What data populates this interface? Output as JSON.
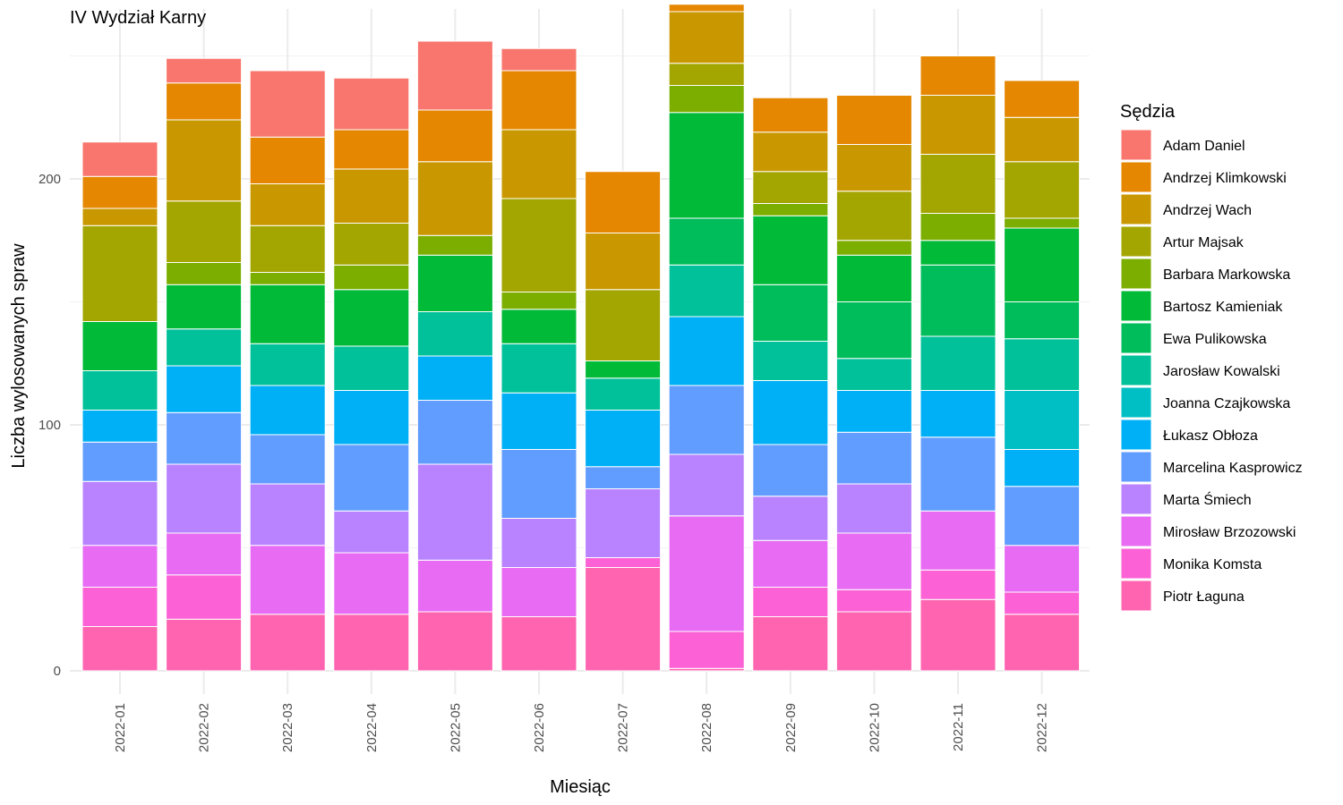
{
  "chart_data": {
    "type": "bar",
    "stacked": true,
    "title": "IV Wydział Karny",
    "xlabel": "Miesiąc",
    "ylabel": "Liczba wylosowanych spraw",
    "ylim": [
      0,
      262
    ],
    "yticks": [
      0,
      100,
      200
    ],
    "grid": true,
    "legend_title": "Sędzia",
    "legend_position": "right",
    "categories": [
      "2022-01",
      "2022-02",
      "2022-03",
      "2022-04",
      "2022-05",
      "2022-06",
      "2022-07",
      "2022-08",
      "2022-09",
      "2022-10",
      "2022-11",
      "2022-12"
    ],
    "series": [
      {
        "name": "Piotr Łaguna",
        "color": "#FF64B0",
        "values": [
          18,
          21,
          23,
          23,
          24,
          22,
          42,
          1,
          22,
          24,
          29,
          23
        ]
      },
      {
        "name": "Monika Komsta",
        "color": "#FC61D5",
        "values": [
          16,
          18,
          0,
          0,
          0,
          0,
          4,
          15,
          12,
          9,
          12,
          9
        ]
      },
      {
        "name": "Mirosław Brzozowski",
        "color": "#E76BF3",
        "values": [
          17,
          17,
          28,
          25,
          21,
          20,
          0,
          47,
          19,
          23,
          24,
          19
        ]
      },
      {
        "name": "Marta Śmiech",
        "color": "#B983FF",
        "values": [
          26,
          28,
          25,
          17,
          39,
          20,
          28,
          25,
          18,
          20,
          0,
          0
        ]
      },
      {
        "name": "Marcelina Kasprowicz",
        "color": "#619CFF",
        "values": [
          16,
          21,
          20,
          27,
          26,
          28,
          9,
          28,
          21,
          21,
          30,
          24
        ]
      },
      {
        "name": "Łukasz Obłoza",
        "color": "#00B0F6",
        "values": [
          13,
          19,
          20,
          22,
          18,
          23,
          23,
          28,
          26,
          17,
          19,
          15
        ]
      },
      {
        "name": "Joanna Czajkowska",
        "color": "#00BFC4",
        "values": [
          0,
          0,
          0,
          0,
          0,
          0,
          0,
          0,
          0,
          0,
          0,
          24
        ]
      },
      {
        "name": "Jarosław Kowalski",
        "color": "#00C19A",
        "values": [
          16,
          15,
          17,
          18,
          18,
          20,
          13,
          21,
          16,
          13,
          22,
          21
        ]
      },
      {
        "name": "Ewa Pulikowska",
        "color": "#00BD5C",
        "values": [
          0,
          0,
          0,
          0,
          0,
          0,
          0,
          19,
          23,
          23,
          29,
          15
        ]
      },
      {
        "name": "Bartosz Kamieniak",
        "color": "#00BA38",
        "values": [
          20,
          18,
          24,
          23,
          23,
          14,
          7,
          43,
          28,
          19,
          10,
          30
        ]
      },
      {
        "name": "Barbara Markowska",
        "color": "#7CAE00",
        "values": [
          0,
          9,
          5,
          10,
          8,
          7,
          0,
          11,
          5,
          6,
          11,
          4
        ]
      },
      {
        "name": "Artur Majsak",
        "color": "#A3A500",
        "values": [
          39,
          25,
          19,
          17,
          0,
          38,
          29,
          9,
          13,
          20,
          24,
          23
        ]
      },
      {
        "name": "Andrzej Wach",
        "color": "#C99800",
        "values": [
          7,
          33,
          17,
          22,
          30,
          28,
          23,
          21,
          16,
          19,
          24,
          18
        ]
      },
      {
        "name": "Andrzej Klimkowski",
        "color": "#E58700",
        "values": [
          13,
          15,
          19,
          16,
          21,
          24,
          25,
          3,
          14,
          20,
          16,
          15
        ]
      },
      {
        "name": "Adam Daniel",
        "color": "#F8766D",
        "values": [
          14,
          10,
          27,
          21,
          28,
          9,
          0,
          0,
          0,
          0,
          0,
          0
        ]
      }
    ],
    "legend_order": [
      "Adam Daniel",
      "Andrzej Klimkowski",
      "Andrzej Wach",
      "Artur Majsak",
      "Barbara Markowska",
      "Bartosz Kamieniak",
      "Ewa Pulikowska",
      "Jarosław Kowalski",
      "Joanna Czajkowska",
      "Łukasz Obłoza",
      "Marcelina Kasprowicz",
      "Marta Śmiech",
      "Mirosław Brzozowski",
      "Monika Komsta",
      "Piotr Łaguna"
    ]
  }
}
